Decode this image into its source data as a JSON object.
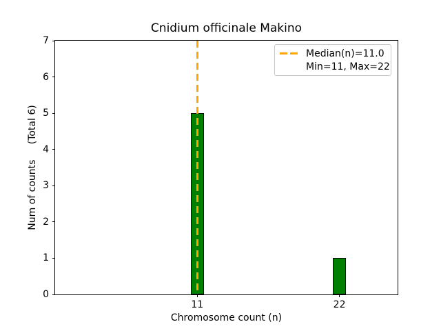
{
  "chart_data": {
    "type": "bar",
    "title": "Cnidium officinale Makino",
    "xlabel": "Chromosome count (n)",
    "ylabel": "Num of counts     (Total 6)",
    "categories": [
      11,
      22
    ],
    "values": [
      5,
      1
    ],
    "yticks": [
      0,
      1,
      2,
      3,
      4,
      5,
      6,
      7
    ],
    "xlim": [
      0,
      26.5
    ],
    "ylim": [
      0,
      7
    ],
    "bar_width_units": 1,
    "grid": false,
    "colors": {
      "bar_fill": "#008000",
      "bar_edge": "#000000",
      "median_line": "#FFA500",
      "axis": "#000000",
      "legend_border": "#c8c8c8"
    },
    "median_line": {
      "x": 11,
      "style": "dashed"
    },
    "legend": {
      "position": "upper right",
      "entries": [
        "Median(n)=11.0",
        "Min=11, Max=22"
      ]
    }
  }
}
